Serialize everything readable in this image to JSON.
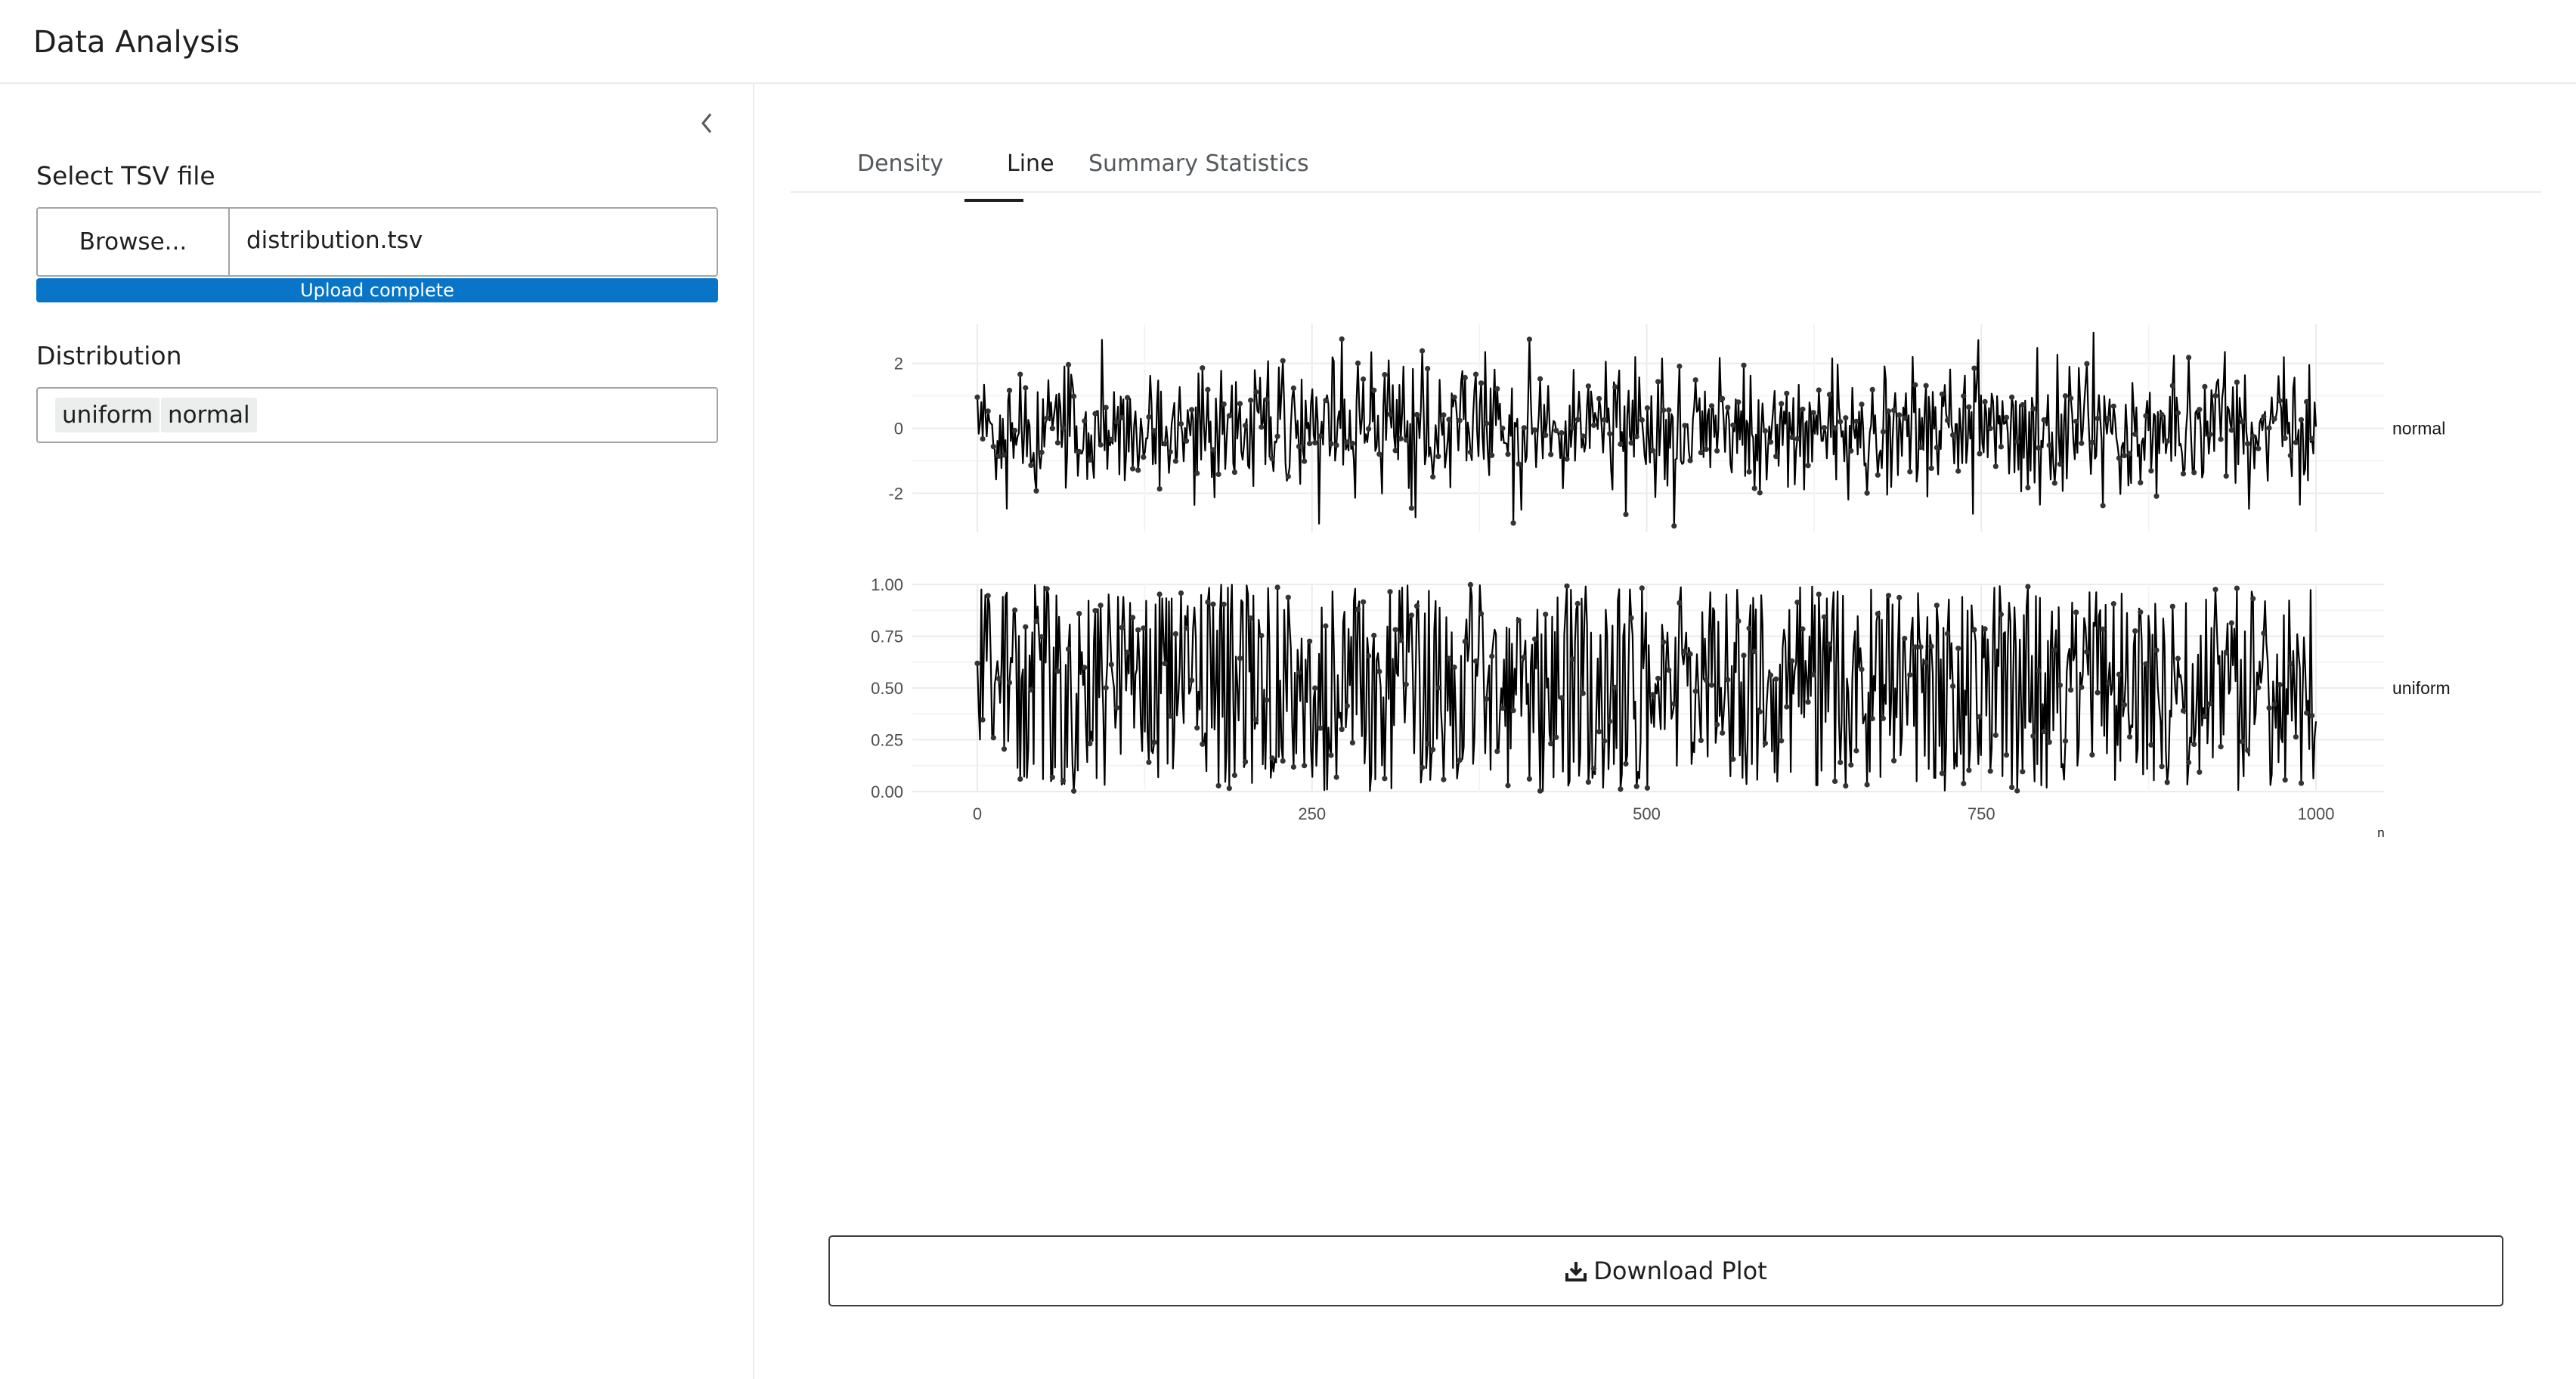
{
  "app": {
    "title": "Data Analysis"
  },
  "sidebar": {
    "file_label": "Select TSV file",
    "browse_label": "Browse...",
    "file_name": "distribution.tsv",
    "progress_text": "Upload complete",
    "progress_fraction": 1,
    "distribution_label": "Distribution",
    "selected": [
      "uniform",
      "normal"
    ]
  },
  "tabs": [
    "Density",
    "Line",
    "Summary Statistics"
  ],
  "active_tab": "Line",
  "download_label": "Download Plot",
  "colors": {
    "accent": "#0975c8",
    "line": "#000000",
    "grid": "#ebebeb"
  },
  "icons": {
    "collapse": "chevron-left-icon",
    "download": "download-icon"
  },
  "chart_data": {
    "type": "line",
    "facets": [
      "normal",
      "uniform"
    ],
    "x": {
      "label": "n",
      "range": [
        0,
        1000
      ],
      "ticks": [
        0,
        250,
        500,
        750,
        1000
      ],
      "tick_labels": [
        "0",
        "250",
        "500",
        "750",
        "1000"
      ]
    },
    "panels": [
      {
        "name": "normal",
        "ylim": [
          -3.2,
          3.2
        ],
        "ticks": [
          -2,
          0,
          2
        ],
        "tick_labels": [
          "-2",
          "0",
          "2"
        ]
      },
      {
        "name": "uniform",
        "ylim": [
          0,
          1
        ],
        "ticks": [
          0,
          0.25,
          0.5,
          0.75,
          1.0
        ],
        "tick_labels": [
          "0.00",
          "0.25",
          "0.50",
          "0.75",
          "1.00"
        ]
      }
    ],
    "points_per_series": 1000,
    "grid": true,
    "markers": "points"
  }
}
